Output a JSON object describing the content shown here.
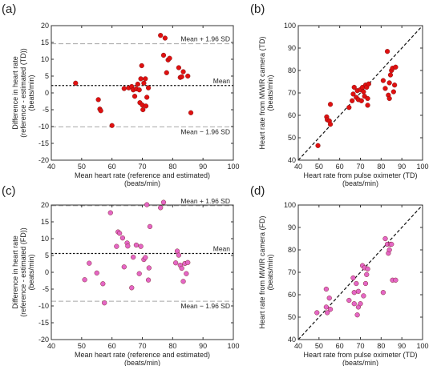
{
  "chart_data": [
    {
      "type": "scatter",
      "panel_label": "(a)",
      "variant": "bland-altman",
      "xlabel_lines": [
        "Mean heart rate (reference and estimated)",
        "(beats/min)"
      ],
      "ylabel_lines": [
        "Difference in heart rate",
        "(reference - estimated (TD))",
        "(beats/min)"
      ],
      "xlim": [
        40,
        100
      ],
      "ylim": [
        -20,
        20
      ],
      "xticks": [
        40,
        50,
        60,
        70,
        80,
        90,
        100
      ],
      "yticks": [
        -20,
        -15,
        -10,
        -5,
        0,
        5,
        10,
        15,
        20
      ],
      "mean": 2.2,
      "upper": 14.6,
      "lower": -10.1,
      "mean_label": "Mean",
      "upper_label": "Mean + 1.96 SD",
      "lower_label": "Mean − 1.96 SD",
      "color": "#e01010",
      "points": [
        [
          48,
          2.9
        ],
        [
          55.5,
          -2
        ],
        [
          56,
          -4.8
        ],
        [
          56.3,
          -5.3
        ],
        [
          60,
          -9.7
        ],
        [
          64,
          1.3
        ],
        [
          65.5,
          1.5
        ],
        [
          66.5,
          1.9
        ],
        [
          67,
          0.9
        ],
        [
          67.5,
          -1
        ],
        [
          68,
          1.2
        ],
        [
          68.5,
          2.6
        ],
        [
          69,
          0.9
        ],
        [
          69.2,
          -2.9
        ],
        [
          69.5,
          4.2
        ],
        [
          69.8,
          8.1
        ],
        [
          70,
          -3.6
        ],
        [
          70.2,
          -5
        ],
        [
          70.5,
          2.9
        ],
        [
          71,
          4.2
        ],
        [
          71.2,
          -3.9
        ],
        [
          71.5,
          -1.3
        ],
        [
          72,
          1.5
        ],
        [
          76,
          17.1
        ],
        [
          77,
          11.2
        ],
        [
          77.5,
          16.3
        ],
        [
          78,
          6
        ],
        [
          78.5,
          9.8
        ],
        [
          79,
          10.3
        ],
        [
          82,
          7.5
        ],
        [
          82.5,
          4.6
        ],
        [
          83,
          4.8
        ],
        [
          83.5,
          6.3
        ],
        [
          85,
          5
        ],
        [
          86,
          -5.9
        ]
      ]
    },
    {
      "type": "scatter",
      "panel_label": "(b)",
      "variant": "identity",
      "xlabel_lines": [
        "Heart rate from pulse oximeter (TD)",
        "(beats/min)"
      ],
      "ylabel_lines": [
        "Heart rate from MWIR camera (TD)",
        "(beats/min)"
      ],
      "xlim": [
        40,
        100
      ],
      "ylim": [
        40,
        100
      ],
      "xticks": [
        40,
        50,
        60,
        70,
        80,
        90,
        100
      ],
      "yticks": [
        40,
        50,
        60,
        70,
        80,
        90,
        100
      ],
      "color": "#e01010",
      "points": [
        [
          49.5,
          46.5
        ],
        [
          53.7,
          59.3
        ],
        [
          54,
          58
        ],
        [
          55,
          57.5
        ],
        [
          55.5,
          56
        ],
        [
          55.5,
          64.9
        ],
        [
          64.5,
          63.5
        ],
        [
          66,
          66.5
        ],
        [
          66.5,
          69.5
        ],
        [
          67,
          72.5
        ],
        [
          68,
          68
        ],
        [
          68.5,
          71
        ],
        [
          69,
          67
        ],
        [
          70,
          71.5
        ],
        [
          70.5,
          66.5
        ],
        [
          71,
          72.5
        ],
        [
          71.5,
          70.5
        ],
        [
          72,
          68.5
        ],
        [
          72.5,
          73.5
        ],
        [
          73,
          72.5
        ],
        [
          73.5,
          64.5
        ],
        [
          73.5,
          67.5
        ],
        [
          74,
          74
        ],
        [
          81,
          75.5
        ],
        [
          82,
          72
        ],
        [
          83,
          88.5
        ],
        [
          83.5,
          69
        ],
        [
          84,
          67.5
        ],
        [
          84,
          74.5
        ],
        [
          84.5,
          78
        ],
        [
          85,
          80
        ],
        [
          85.5,
          81
        ],
        [
          86,
          70.5
        ],
        [
          86.5,
          73.5
        ],
        [
          87,
          81.5
        ]
      ]
    },
    {
      "type": "scatter",
      "panel_label": "(c)",
      "variant": "bland-altman",
      "xlabel_lines": [
        "Mean heart rate (reference and estimated)",
        "(beats/min)"
      ],
      "ylabel_lines": [
        "Difference in heart rate",
        "(reference - estimated (FD))",
        "(beats/min)"
      ],
      "xlim": [
        40,
        100
      ],
      "ylim": [
        -20,
        20
      ],
      "xticks": [
        40,
        50,
        60,
        70,
        80,
        90,
        100
      ],
      "yticks": [
        -20,
        -15,
        -10,
        -5,
        0,
        5,
        10,
        15,
        20
      ],
      "mean": 5.6,
      "upper": 19.8,
      "lower": -8.6,
      "mean_label": "Mean",
      "upper_label": "Mean + 1.96 SD",
      "lower_label": "Mean − 1.96 SD",
      "color": "#e466c5",
      "points": [
        [
          51,
          -2.2
        ],
        [
          52.5,
          2.7
        ],
        [
          55,
          -0.2
        ],
        [
          57,
          -3.4
        ],
        [
          57.5,
          -9.1
        ],
        [
          59.5,
          17.7
        ],
        [
          61.5,
          7.7
        ],
        [
          62,
          12
        ],
        [
          62.5,
          11.6
        ],
        [
          63.5,
          10.2
        ],
        [
          64,
          1.6
        ],
        [
          65,
          8.7
        ],
        [
          65.2,
          7.8
        ],
        [
          66.5,
          -4.6
        ],
        [
          67,
          4.5
        ],
        [
          68,
          8.1
        ],
        [
          69,
          -0.4
        ],
        [
          69.5,
          7.7
        ],
        [
          70.5,
          3.8
        ],
        [
          71,
          4.4
        ],
        [
          71.5,
          20.1
        ],
        [
          72,
          -2.3
        ],
        [
          72.2,
          1.3
        ],
        [
          72.5,
          13.6
        ],
        [
          76,
          19.2
        ],
        [
          77,
          20.8
        ],
        [
          81,
          2.8
        ],
        [
          81.5,
          6.3
        ],
        [
          82,
          5.1
        ],
        [
          82.5,
          2.1
        ],
        [
          83,
          1.2
        ],
        [
          83.5,
          -2.7
        ],
        [
          84,
          2.6
        ],
        [
          84.5,
          -0.4
        ],
        [
          85,
          2.9
        ]
      ]
    },
    {
      "type": "scatter",
      "panel_label": "(d)",
      "variant": "identity",
      "xlabel_lines": [
        "Heart rate from pulse oximeter (TD)",
        "(beats/min)"
      ],
      "ylabel_lines": [
        "Heart rate from MWIR camera (FD)",
        "(beats/min)"
      ],
      "xlim": [
        40,
        100
      ],
      "ylim": [
        40,
        100
      ],
      "xticks": [
        40,
        50,
        60,
        70,
        80,
        90,
        100
      ],
      "yticks": [
        40,
        50,
        60,
        70,
        80,
        90,
        100
      ],
      "color": "#e466c5",
      "points": [
        [
          49,
          52
        ],
        [
          53.5,
          54.5
        ],
        [
          53.5,
          62.5
        ],
        [
          54,
          52
        ],
        [
          55,
          58.5
        ],
        [
          55.5,
          53.5
        ],
        [
          64.5,
          57.5
        ],
        [
          66.5,
          67.5
        ],
        [
          67,
          56
        ],
        [
          67,
          61
        ],
        [
          68,
          65
        ],
        [
          68.5,
          51
        ],
        [
          69,
          54.5
        ],
        [
          69,
          61.5
        ],
        [
          70,
          56
        ],
        [
          71,
          73
        ],
        [
          71.5,
          59.5
        ],
        [
          72,
          72
        ],
        [
          72.5,
          65
        ],
        [
          73,
          69
        ],
        [
          73.5,
          71.5
        ],
        [
          81,
          61
        ],
        [
          82,
          85
        ],
        [
          83,
          82.5
        ],
        [
          83.5,
          78.5
        ],
        [
          84,
          80
        ],
        [
          84.5,
          82.5
        ],
        [
          85,
          82.5
        ],
        [
          85.5,
          66.5
        ],
        [
          87,
          66.5
        ]
      ]
    }
  ]
}
